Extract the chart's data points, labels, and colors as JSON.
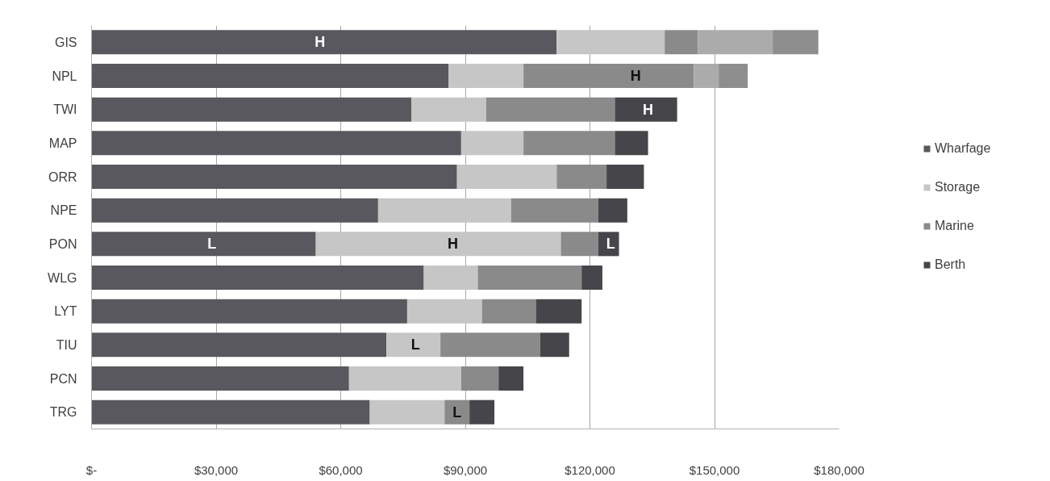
{
  "chart_data": {
    "type": "bar",
    "orientation": "horizontal",
    "stacked": true,
    "categories": [
      "GIS",
      "NPL",
      "TWI",
      "MAP",
      "ORR",
      "NPE",
      "PON",
      "WLG",
      "LYT",
      "TIU",
      "PCN",
      "TRG"
    ],
    "series": [
      {
        "name": "Wharfage",
        "color": "#58585e",
        "values": [
          112000,
          86000,
          77000,
          89000,
          88000,
          69000,
          54000,
          80000,
          76000,
          71000,
          62000,
          67000
        ]
      },
      {
        "name": "Storage",
        "color": "#c6c6c6",
        "values": [
          26000,
          18000,
          18000,
          15000,
          24000,
          32000,
          59000,
          13000,
          18000,
          13000,
          27000,
          18000
        ]
      },
      {
        "name": "Marine",
        "color": "#8a8a8a",
        "values": [
          8000,
          41000,
          31000,
          22000,
          12000,
          21000,
          9000,
          25000,
          13000,
          24000,
          9000,
          6000
        ]
      },
      {
        "color": "#ababab",
        "values": [
          18000,
          6000,
          null,
          null,
          null,
          null,
          null,
          null,
          null,
          null,
          null,
          null
        ]
      },
      {
        "name": "Berth",
        "color": "#46464a",
        "colors": [
          "#8e8e8e",
          "#8e8e8e",
          "#46464a",
          "#46464a",
          "#46464a",
          "#46464a",
          "#46464a",
          "#46464a",
          "#46464a",
          "#46464a",
          "#46464a",
          "#46464a"
        ],
        "values": [
          11000,
          7000,
          15000,
          8000,
          9000,
          7000,
          5000,
          5000,
          11000,
          7000,
          6000,
          6000
        ]
      }
    ],
    "xlim": [
      0,
      180000
    ],
    "xticks": [
      {
        "value": 0,
        "label": "$-"
      },
      {
        "value": 30000,
        "label": "$30,000"
      },
      {
        "value": 60000,
        "label": "$60,000"
      },
      {
        "value": 90000,
        "label": "$90,000"
      },
      {
        "value": 120000,
        "label": "$120,000"
      },
      {
        "value": 150000,
        "label": "$150,000"
      },
      {
        "value": 180000,
        "label": "$180,000"
      }
    ],
    "grid": "x",
    "legend": "right",
    "annotations": [
      {
        "text": "H",
        "x": 55000,
        "y": "GIS"
      },
      {
        "text": "H",
        "x": 131000,
        "y": "NPL"
      },
      {
        "text": "H",
        "x": 134000,
        "y": "TWI"
      },
      {
        "text": "L",
        "x": 29000,
        "y": "PON"
      },
      {
        "text": "H",
        "x": 87000,
        "y": "PON"
      },
      {
        "text": "L",
        "x": 125000,
        "y": "PON"
      },
      {
        "text": "L",
        "x": 78000,
        "y": "TIU"
      },
      {
        "text": "L",
        "x": 88000,
        "y": "TRG"
      }
    ]
  }
}
